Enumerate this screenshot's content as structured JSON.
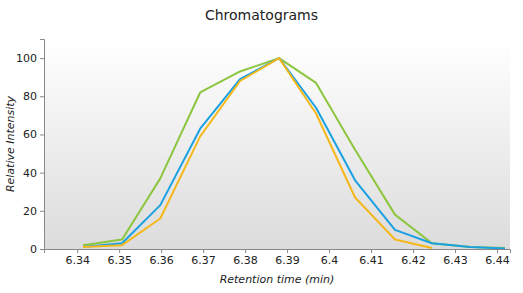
{
  "chart_data": {
    "type": "line",
    "title": "Chromatograms",
    "x_label": "Retention time (min)",
    "y_label": "Relative Intensity",
    "x": [
      6.3414,
      6.3507,
      6.3598,
      6.3693,
      6.3788,
      6.3881,
      6.3969,
      6.4062,
      6.4157,
      6.4245,
      6.4336,
      6.4419
    ],
    "series": [
      {
        "color": "#8cc63f",
        "values": [
          2,
          5,
          37,
          82,
          93,
          100,
          87,
          52,
          18,
          3,
          1,
          0.5
        ]
      },
      {
        "color": "#1ba1e2",
        "values": [
          1,
          3,
          23,
          63,
          89,
          100,
          74,
          36,
          10,
          3,
          1,
          0.3
        ]
      },
      {
        "color": "#f5b81c",
        "values": [
          1,
          2,
          16,
          59,
          88,
          100,
          71,
          27,
          5,
          0.5,
          null,
          null
        ]
      }
    ],
    "xlim": [
      6.3321,
      6.4431
    ],
    "ylim": [
      0,
      110
    ],
    "xticks": [
      6.34,
      6.35,
      6.36,
      6.37,
      6.38,
      6.39,
      6.4,
      6.41,
      6.42,
      6.43,
      6.44
    ],
    "yticks": [
      0,
      20,
      40,
      60,
      80,
      100
    ],
    "grid": false
  }
}
